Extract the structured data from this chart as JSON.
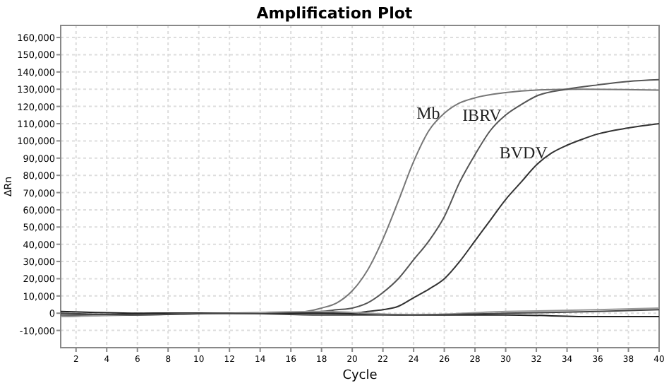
{
  "chart_data": {
    "type": "line",
    "title": "Amplification Plot",
    "xlabel": "Cycle",
    "ylabel": "ΔRn",
    "xlim": [
      1,
      40
    ],
    "xticks": [
      2,
      4,
      6,
      8,
      10,
      12,
      14,
      16,
      18,
      20,
      22,
      24,
      26,
      28,
      30,
      32,
      34,
      36,
      38,
      40
    ],
    "ylim": [
      -20000,
      167000
    ],
    "yticks": [
      {
        "value": -10000,
        "label": "-10,000"
      },
      0,
      {
        "value": 10000,
        "label": "10,000"
      },
      {
        "value": 20000,
        "label": "20,000"
      },
      {
        "value": 30000,
        "label": "30,000"
      },
      {
        "value": 40000,
        "label": "40,000"
      },
      {
        "value": 50000,
        "label": "50,000"
      },
      {
        "value": 60000,
        "label": "60,000"
      },
      {
        "value": 70000,
        "label": "70,000"
      },
      {
        "value": 80000,
        "label": "80,000"
      },
      {
        "value": 90000,
        "label": "90,000"
      },
      {
        "value": 100000,
        "label": "100,000"
      },
      {
        "value": 110000,
        "label": "110,000"
      },
      {
        "value": 120000,
        "label": "120,000"
      },
      {
        "value": 130000,
        "label": "130,000"
      },
      {
        "value": 140000,
        "label": "140,000"
      },
      {
        "value": 150000,
        "label": "150,000"
      },
      {
        "value": 160000,
        "label": "160,000"
      }
    ],
    "grid": true,
    "marker": "none",
    "line_style": "solid",
    "series": [
      {
        "name": "Mb",
        "color": "#777777",
        "x": [
          1,
          4,
          8,
          12,
          16,
          17,
          18,
          19,
          20,
          21,
          22,
          23,
          24,
          25,
          26,
          27,
          28,
          30,
          32,
          35,
          40
        ],
        "values": [
          -2000,
          -1000,
          0,
          0,
          0,
          1000,
          3000,
          6000,
          13000,
          25000,
          43000,
          65000,
          88000,
          106000,
          116000,
          122000,
          125000,
          128000,
          129500,
          130000,
          129500
        ]
      },
      {
        "name": "IBRV",
        "color": "#555555",
        "x": [
          1,
          4,
          8,
          12,
          16,
          18,
          19,
          20,
          21,
          22,
          23,
          24,
          25,
          26,
          27,
          28,
          29,
          30,
          31,
          32,
          34,
          36,
          38,
          40
        ],
        "values": [
          -1000,
          -1000,
          0,
          0,
          0,
          1000,
          2000,
          3000,
          6000,
          12000,
          20000,
          31000,
          42000,
          56000,
          76000,
          92000,
          106000,
          115000,
          121000,
          126000,
          130000,
          132500,
          134500,
          135500
        ]
      },
      {
        "name": "BVDV",
        "color": "#333333",
        "x": [
          1,
          4,
          8,
          12,
          16,
          20,
          21,
          22,
          23,
          24,
          25,
          26,
          27,
          28,
          29,
          30,
          31,
          32,
          33,
          34,
          35,
          36,
          38,
          40
        ],
        "values": [
          -2000,
          -1000,
          0,
          0,
          0,
          0,
          1000,
          2000,
          4000,
          9000,
          14000,
          20000,
          30000,
          42000,
          54000,
          66000,
          76000,
          86000,
          93000,
          97500,
          101000,
          104000,
          107500,
          110000
        ]
      },
      {
        "color": "#222222",
        "x": [
          1,
          6,
          12,
          18,
          24,
          30,
          36,
          40
        ],
        "values": [
          1000,
          0,
          0,
          0,
          -1000,
          -1000,
          -2000,
          -2000
        ]
      },
      {
        "color": "#999999",
        "x": [
          1,
          6,
          12,
          18,
          24,
          30,
          36,
          40
        ],
        "values": [
          -2000,
          -1000,
          0,
          1000,
          -1000,
          1000,
          2000,
          3000
        ]
      },
      {
        "color": "#444444",
        "x": [
          1,
          6,
          12,
          18,
          24,
          30,
          36,
          40
        ],
        "values": [
          0,
          -1000,
          0,
          -1000,
          -1000,
          0,
          1000,
          2000
        ]
      }
    ]
  }
}
